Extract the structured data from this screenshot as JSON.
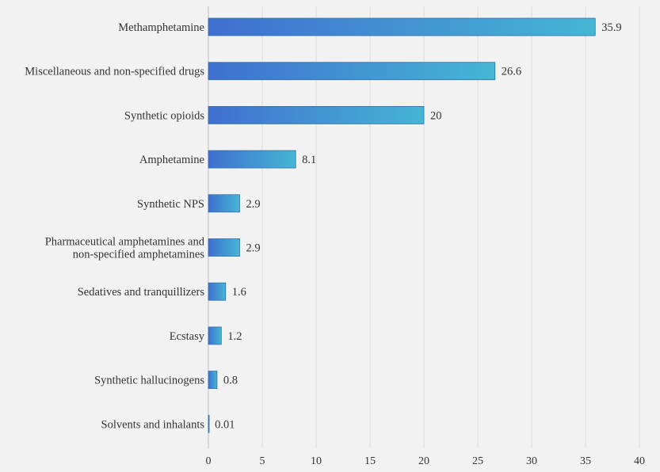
{
  "chart_data": {
    "type": "bar",
    "orientation": "horizontal",
    "title": "",
    "xlabel": "",
    "ylabel": "",
    "xlim": [
      0,
      40
    ],
    "x_ticks": [
      0,
      5,
      10,
      15,
      20,
      25,
      30,
      35,
      40
    ],
    "grid": true,
    "categories": [
      [
        "Methamphetamine"
      ],
      [
        "Miscellaneous and non-specified drugs"
      ],
      [
        "Synthetic opioids"
      ],
      [
        "Amphetamine"
      ],
      [
        "Synthetic NPS"
      ],
      [
        "Pharmaceutical amphetamines and",
        "non-specified amphetamines"
      ],
      [
        "Sedatives and tranquillizers"
      ],
      [
        "Ecstasy"
      ],
      [
        "Synthetic hallucinogens"
      ],
      [
        "Solvents and inhalants"
      ]
    ],
    "values": [
      35.9,
      26.6,
      20,
      8.1,
      2.9,
      2.9,
      1.6,
      1.2,
      0.8,
      0.01
    ],
    "value_labels": [
      "35.9",
      "26.6",
      "20",
      "8.1",
      "2.9",
      "2.9",
      "1.6",
      "1.2",
      "0.8",
      "0.01"
    ],
    "colors": {
      "bar_start": "#3f6fd0",
      "bar_end": "#45b6d4",
      "bar_stroke": "#2f6fa8",
      "grid": "#dcdcdc",
      "background": "#f2f2f2"
    }
  }
}
